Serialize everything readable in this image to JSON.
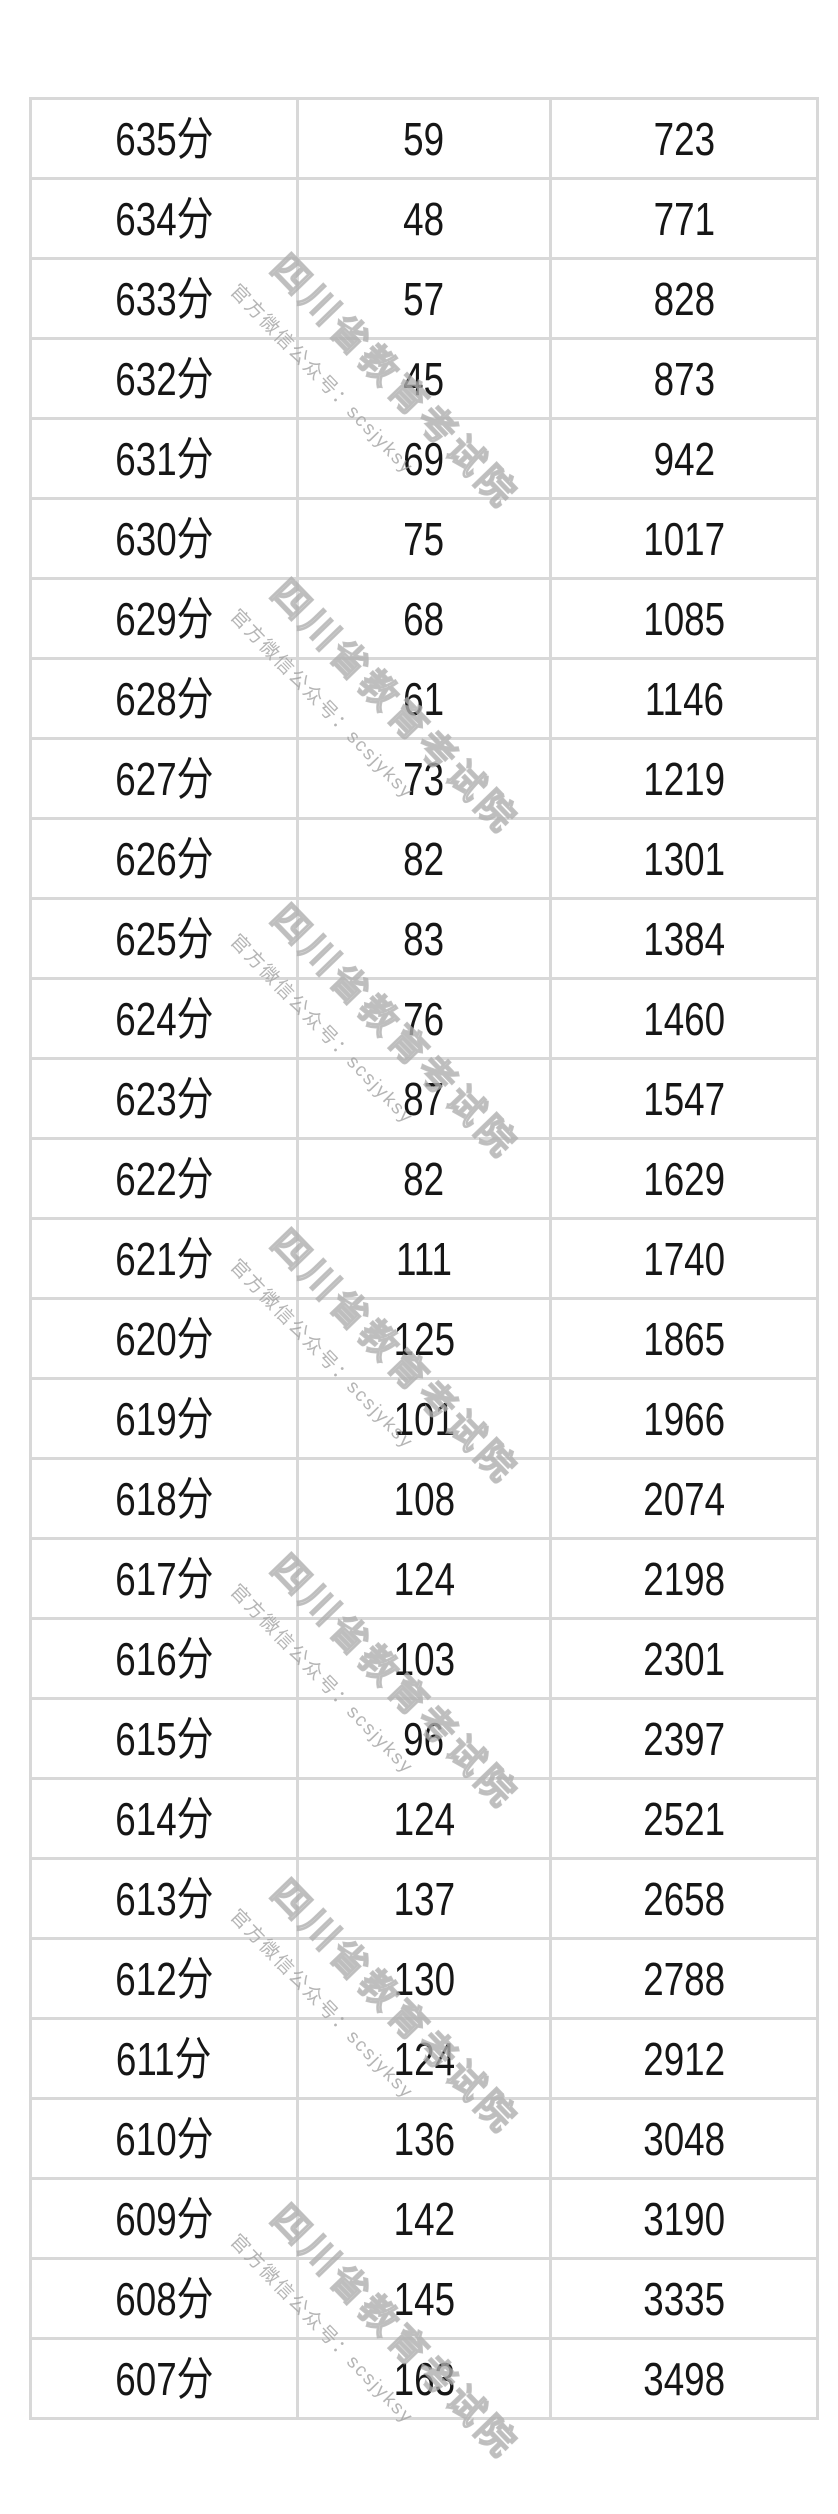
{
  "table": {
    "rows": [
      [
        "635分",
        "59",
        "723"
      ],
      [
        "634分",
        "48",
        "771"
      ],
      [
        "633分",
        "57",
        "828"
      ],
      [
        "632分",
        "45",
        "873"
      ],
      [
        "631分",
        "69",
        "942"
      ],
      [
        "630分",
        "75",
        "1017"
      ],
      [
        "629分",
        "68",
        "1085"
      ],
      [
        "628分",
        "61",
        "1146"
      ],
      [
        "627分",
        "73",
        "1219"
      ],
      [
        "626分",
        "82",
        "1301"
      ],
      [
        "625分",
        "83",
        "1384"
      ],
      [
        "624分",
        "76",
        "1460"
      ],
      [
        "623分",
        "87",
        "1547"
      ],
      [
        "622分",
        "82",
        "1629"
      ],
      [
        "621分",
        "111",
        "1740"
      ],
      [
        "620分",
        "125",
        "1865"
      ],
      [
        "619分",
        "101",
        "1966"
      ],
      [
        "618分",
        "108",
        "2074"
      ],
      [
        "617分",
        "124",
        "2198"
      ],
      [
        "616分",
        "103",
        "2301"
      ],
      [
        "615分",
        "96",
        "2397"
      ],
      [
        "614分",
        "124",
        "2521"
      ],
      [
        "613分",
        "137",
        "2658"
      ],
      [
        "612分",
        "130",
        "2788"
      ],
      [
        "611分",
        "124",
        "2912"
      ],
      [
        "610分",
        "136",
        "3048"
      ],
      [
        "609分",
        "142",
        "3190"
      ],
      [
        "608分",
        "145",
        "3335"
      ],
      [
        "607分",
        "163",
        "3498"
      ]
    ]
  },
  "watermark": {
    "line1": "四川省教育考试院",
    "line2": "官方微信公众号：scsjyksy"
  },
  "colors": {
    "background": "#ffffff",
    "border": "#d8d8d8",
    "text": "#161616",
    "watermark": "#bdbdbd"
  }
}
